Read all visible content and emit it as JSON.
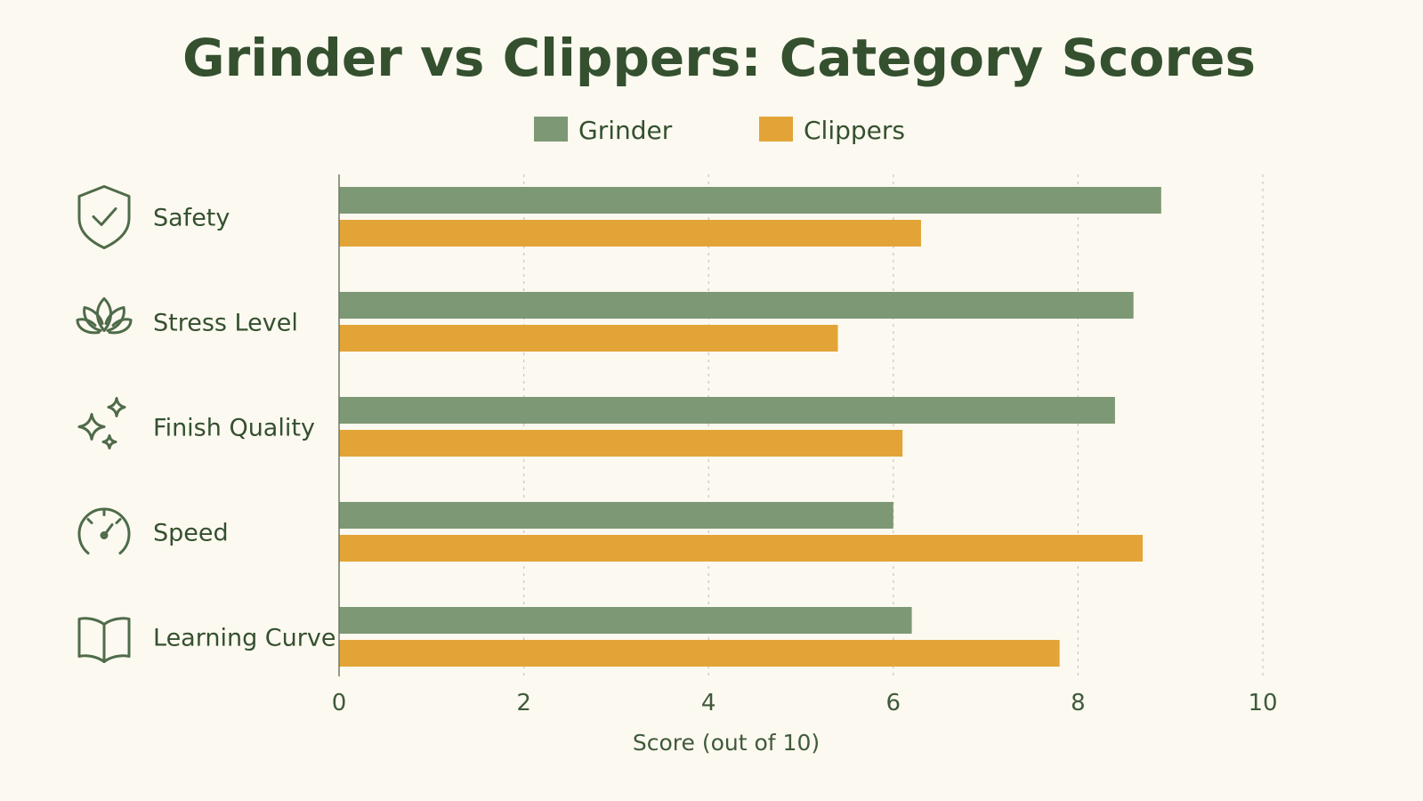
{
  "chart_data": {
    "type": "bar",
    "orientation": "horizontal",
    "title": "Grinder vs Clippers: Category Scores",
    "xlabel": "Score (out of 10)",
    "xlim": [
      0,
      10
    ],
    "xticks": [
      0,
      2,
      4,
      6,
      8,
      10
    ],
    "grid": true,
    "legend_position": "top-center",
    "categories": [
      "Safety",
      "Stress Level",
      "Finish Quality",
      "Speed",
      "Learning Curve"
    ],
    "category_icons": [
      "shield-check-icon",
      "lotus-icon",
      "sparkles-icon",
      "speedometer-icon",
      "open-book-icon"
    ],
    "series": [
      {
        "name": "Grinder",
        "color": "#7d9874",
        "values": [
          8.9,
          8.6,
          8.4,
          6.0,
          6.2
        ]
      },
      {
        "name": "Clippers",
        "color": "#e3a437",
        "values": [
          6.3,
          5.4,
          6.1,
          8.7,
          7.8
        ]
      }
    ]
  }
}
